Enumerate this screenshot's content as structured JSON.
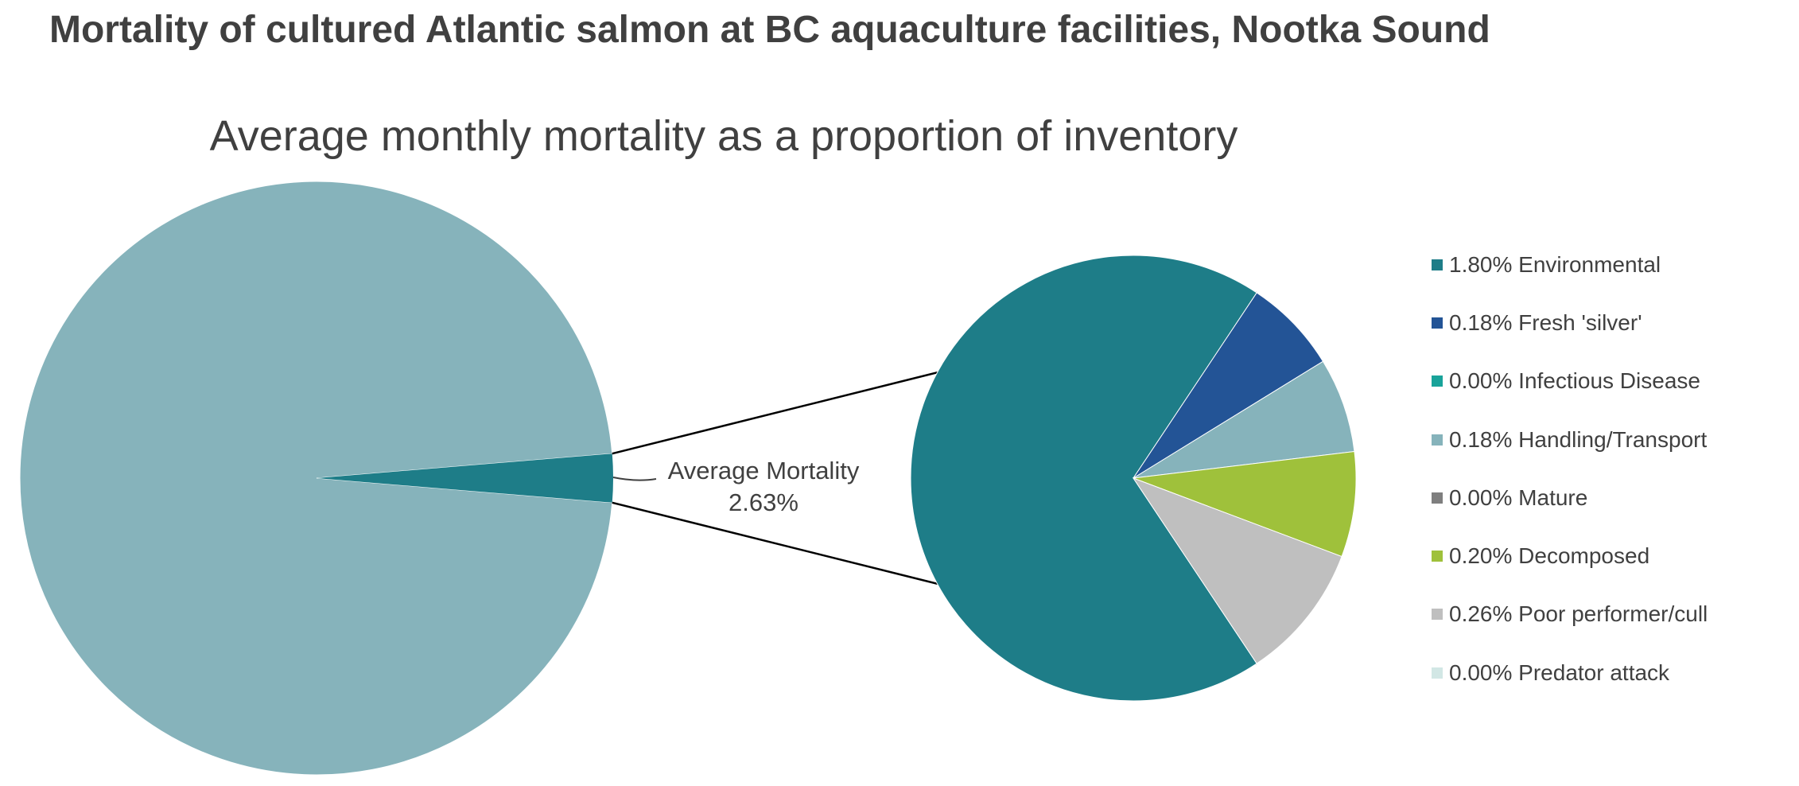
{
  "header": {
    "title": "Mortality of cultured Atlantic salmon at BC aquaculture facilities, Nootka Sound"
  },
  "chart_data": {
    "type": "pie",
    "subtitle": "Average monthly mortality as a proportion of inventory",
    "primary_pie": {
      "slices": [
        {
          "value": 97.37,
          "color": "#86b3bb"
        },
        {
          "name": "Average Mortality",
          "value": 2.63,
          "color": "#1e7d88"
        }
      ]
    },
    "callout": {
      "line1": "Average Mortality",
      "line2": "2.63%"
    },
    "secondary_pie": {
      "slices": [
        {
          "name": "Environmental",
          "value": 1.8,
          "label": "1.80% Environmental",
          "color": "#1e7d88"
        },
        {
          "name": "Fresh 'silver'",
          "value": 0.18,
          "label": "0.18% Fresh 'silver'",
          "color": "#235496"
        },
        {
          "name": "Infectious Disease",
          "value": 0.0,
          "label": "0.00% Infectious Disease",
          "color": "#19a39a"
        },
        {
          "name": "Handling/Transport",
          "value": 0.18,
          "label": "0.18% Handling/Transport",
          "color": "#86b3bb"
        },
        {
          "name": "Mature",
          "value": 0.0,
          "label": "0.00% Mature",
          "color": "#7f7f7f"
        },
        {
          "name": "Decomposed",
          "value": 0.2,
          "label": "0.20% Decomposed",
          "color": "#9fc13b"
        },
        {
          "name": "Poor performer/cull",
          "value": 0.26,
          "label": "0.26% Poor performer/cull",
          "color": "#bfbfbf"
        },
        {
          "name": "Predator attack",
          "value": 0.0,
          "label": "0.00% Predator attack",
          "color": "#d2e7e5"
        }
      ]
    },
    "legend_position": "right"
  }
}
